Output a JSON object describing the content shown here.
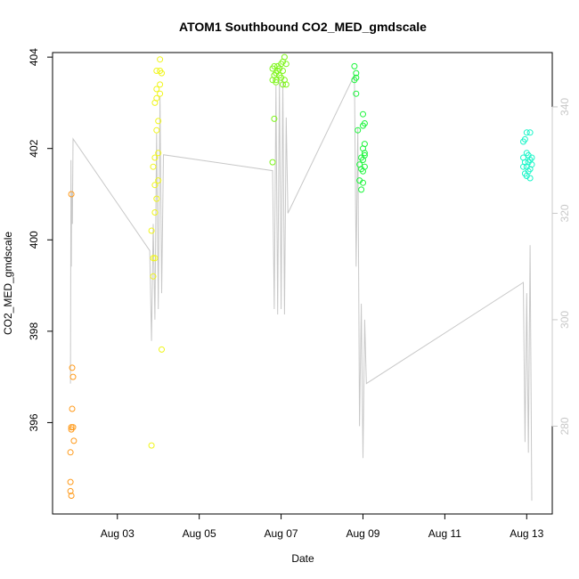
{
  "chart_data": {
    "type": "scatter",
    "title": "ATOM1 Southbound CO2_MED_gmdscale",
    "xlabel": "Date",
    "ylabel": "CO2_MED_gmdscale",
    "x_ticks": [
      "Aug 03",
      "Aug 05",
      "Aug 07",
      "Aug 09",
      "Aug 11",
      "Aug 13"
    ],
    "y_ticks": [
      396,
      398,
      400,
      402,
      404
    ],
    "y2_ticks": [
      280,
      300,
      320,
      340
    ],
    "xlim": [
      "2016-08-01T10:00",
      "2016-08-13T15:00"
    ],
    "ylim": [
      394.0,
      404.1
    ],
    "y2lim": [
      263.5,
      350.2
    ],
    "grid": false,
    "colors": {
      "right_axis": "#c8c8c8",
      "line": "#c8c8c8",
      "points": [
        "#ff9a1a",
        "#f0f51a",
        "#7ef51a",
        "#1af53a",
        "#1af5c8"
      ]
    },
    "series": [
      {
        "color": "#ff9a1a",
        "points": [
          [
            "2016-08-01T21:00",
            401.0
          ],
          [
            "2016-08-01T21:30",
            397.2
          ],
          [
            "2016-08-01T22:00",
            397.0
          ],
          [
            "2016-08-01T21:30",
            396.3
          ],
          [
            "2016-08-01T21:00",
            395.9
          ],
          [
            "2016-08-01T21:00",
            395.85
          ],
          [
            "2016-08-01T22:00",
            395.9
          ],
          [
            "2016-08-01T22:30",
            395.6
          ],
          [
            "2016-08-01T20:30",
            395.35
          ],
          [
            "2016-08-01T20:30",
            394.7
          ],
          [
            "2016-08-01T20:30",
            394.5
          ],
          [
            "2016-08-01T21:00",
            394.4
          ]
        ]
      },
      {
        "color": "#f0f51a",
        "points": [
          [
            "2016-08-03T20:00",
            395.5
          ],
          [
            "2016-08-04T02:00",
            397.6
          ],
          [
            "2016-08-03T21:00",
            399.2
          ],
          [
            "2016-08-03T21:00",
            399.6
          ],
          [
            "2016-08-03T22:00",
            399.6
          ],
          [
            "2016-08-03T20:00",
            400.2
          ],
          [
            "2016-08-03T22:00",
            400.6
          ],
          [
            "2016-08-03T23:00",
            400.9
          ],
          [
            "2016-08-03T22:00",
            401.2
          ],
          [
            "2016-08-04T00:00",
            401.3
          ],
          [
            "2016-08-03T21:00",
            401.6
          ],
          [
            "2016-08-03T22:00",
            401.8
          ],
          [
            "2016-08-04T00:00",
            401.9
          ],
          [
            "2016-08-03T23:00",
            402.4
          ],
          [
            "2016-08-04T00:00",
            402.6
          ],
          [
            "2016-08-03T22:00",
            403.0
          ],
          [
            "2016-08-03T23:00",
            403.1
          ],
          [
            "2016-08-04T01:00",
            403.2
          ],
          [
            "2016-08-03T23:00",
            403.3
          ],
          [
            "2016-08-04T01:00",
            403.4
          ],
          [
            "2016-08-03T23:00",
            403.7
          ],
          [
            "2016-08-04T01:00",
            403.7
          ],
          [
            "2016-08-04T02:00",
            403.65
          ],
          [
            "2016-08-04T01:00",
            403.95
          ]
        ]
      },
      {
        "color": "#7ef51a",
        "points": [
          [
            "2016-08-06T19:00",
            401.7
          ],
          [
            "2016-08-06T20:00",
            402.65
          ],
          [
            "2016-08-06T19:00",
            403.5
          ],
          [
            "2016-08-06T20:00",
            403.6
          ],
          [
            "2016-08-06T21:00",
            403.5
          ],
          [
            "2016-08-06T22:00",
            403.7
          ],
          [
            "2016-08-06T23:00",
            403.6
          ],
          [
            "2016-08-07T00:00",
            403.55
          ],
          [
            "2016-08-07T01:00",
            403.4
          ],
          [
            "2016-08-07T02:00",
            403.5
          ],
          [
            "2016-08-07T03:00",
            403.4
          ],
          [
            "2016-08-06T20:00",
            403.8
          ],
          [
            "2016-08-06T22:00",
            403.8
          ],
          [
            "2016-08-07T00:00",
            403.85
          ],
          [
            "2016-08-07T01:00",
            403.9
          ],
          [
            "2016-08-07T02:00",
            404.0
          ],
          [
            "2016-08-06T19:00",
            403.75
          ],
          [
            "2016-08-06T21:00",
            403.65
          ],
          [
            "2016-08-06T23:00",
            403.75
          ],
          [
            "2016-08-07T01:00",
            403.7
          ],
          [
            "2016-08-07T03:00",
            403.85
          ],
          [
            "2016-08-06T21:00",
            403.45
          ]
        ]
      },
      {
        "color": "#1af53a",
        "points": [
          [
            "2016-08-08T19:00",
            403.8
          ],
          [
            "2016-08-08T20:00",
            403.65
          ],
          [
            "2016-08-08T20:00",
            403.55
          ],
          [
            "2016-08-08T19:00",
            403.5
          ],
          [
            "2016-08-08T20:00",
            403.2
          ],
          [
            "2016-08-09T00:00",
            402.75
          ],
          [
            "2016-08-09T01:00",
            402.55
          ],
          [
            "2016-08-09T00:00",
            402.5
          ],
          [
            "2016-08-08T21:00",
            402.4
          ],
          [
            "2016-08-09T01:00",
            402.1
          ],
          [
            "2016-08-09T00:00",
            402.0
          ],
          [
            "2016-08-09T01:00",
            401.9
          ],
          [
            "2016-08-08T23:00",
            401.8
          ],
          [
            "2016-08-09T00:00",
            401.75
          ],
          [
            "2016-08-08T22:00",
            401.65
          ],
          [
            "2016-08-09T01:00",
            401.6
          ],
          [
            "2016-08-08T23:00",
            401.55
          ],
          [
            "2016-08-09T00:00",
            401.5
          ],
          [
            "2016-08-08T22:00",
            401.3
          ],
          [
            "2016-08-09T00:00",
            401.25
          ],
          [
            "2016-08-08T23:00",
            401.1
          ],
          [
            "2016-08-09T01:00",
            401.85
          ]
        ]
      },
      {
        "color": "#1af5c8",
        "points": [
          [
            "2016-08-12T22:00",
            402.15
          ],
          [
            "2016-08-12T23:00",
            402.2
          ],
          [
            "2016-08-13T00:00",
            402.35
          ],
          [
            "2016-08-13T02:00",
            402.35
          ],
          [
            "2016-08-13T00:00",
            401.9
          ],
          [
            "2016-08-13T01:00",
            401.85
          ],
          [
            "2016-08-12T22:00",
            401.8
          ],
          [
            "2016-08-13T03:00",
            401.8
          ],
          [
            "2016-08-13T02:00",
            401.75
          ],
          [
            "2016-08-12T23:00",
            401.7
          ],
          [
            "2016-08-13T01:00",
            401.7
          ],
          [
            "2016-08-13T03:00",
            401.65
          ],
          [
            "2016-08-12T22:00",
            401.6
          ],
          [
            "2016-08-13T00:00",
            401.6
          ],
          [
            "2016-08-13T02:00",
            401.55
          ],
          [
            "2016-08-13T01:00",
            401.5
          ],
          [
            "2016-08-12T23:00",
            401.45
          ],
          [
            "2016-08-13T00:00",
            401.4
          ],
          [
            "2016-08-13T02:00",
            401.35
          ]
        ]
      }
    ],
    "line_series": {
      "axis": "right",
      "color": "#c8c8c8",
      "points": [
        [
          "2016-08-01T20:30",
          288
        ],
        [
          "2016-08-01T20:50",
          330
        ],
        [
          "2016-08-01T21:00",
          310
        ],
        [
          "2016-08-01T21:10",
          324
        ],
        [
          "2016-08-01T21:20",
          320
        ],
        [
          "2016-08-01T21:40",
          318
        ],
        [
          "2016-08-01T22:00",
          334
        ],
        [
          "2016-08-03T19:00",
          313
        ],
        [
          "2016-08-03T20:00",
          296
        ],
        [
          "2016-08-03T21:00",
          318
        ],
        [
          "2016-08-03T22:00",
          300
        ],
        [
          "2016-08-03T23:00",
          335
        ],
        [
          "2016-08-04T00:00",
          302
        ],
        [
          "2016-08-04T01:00",
          342
        ],
        [
          "2016-08-04T02:00",
          305
        ],
        [
          "2016-08-04T03:00",
          331
        ],
        [
          "2016-08-06T19:00",
          328
        ],
        [
          "2016-08-06T20:00",
          302
        ],
        [
          "2016-08-06T21:00",
          344
        ],
        [
          "2016-08-06T22:00",
          301
        ],
        [
          "2016-08-06T23:00",
          345
        ],
        [
          "2016-08-07T00:00",
          302
        ],
        [
          "2016-08-07T01:00",
          345
        ],
        [
          "2016-08-07T02:00",
          301
        ],
        [
          "2016-08-07T03:00",
          338
        ],
        [
          "2016-08-07T04:00",
          320
        ],
        [
          "2016-08-08T19:00",
          346
        ],
        [
          "2016-08-08T20:00",
          310
        ],
        [
          "2016-08-08T21:00",
          336
        ],
        [
          "2016-08-08T22:00",
          280
        ],
        [
          "2016-08-08T23:00",
          303
        ],
        [
          "2016-08-09T00:00",
          274
        ],
        [
          "2016-08-09T01:00",
          300
        ],
        [
          "2016-08-09T02:00",
          288
        ],
        [
          "2016-08-12T22:00",
          307
        ],
        [
          "2016-08-12T23:00",
          277
        ],
        [
          "2016-08-13T00:00",
          305
        ],
        [
          "2016-08-13T01:00",
          275
        ],
        [
          "2016-08-13T02:00",
          314
        ],
        [
          "2016-08-13T03:00",
          266
        ]
      ]
    }
  }
}
